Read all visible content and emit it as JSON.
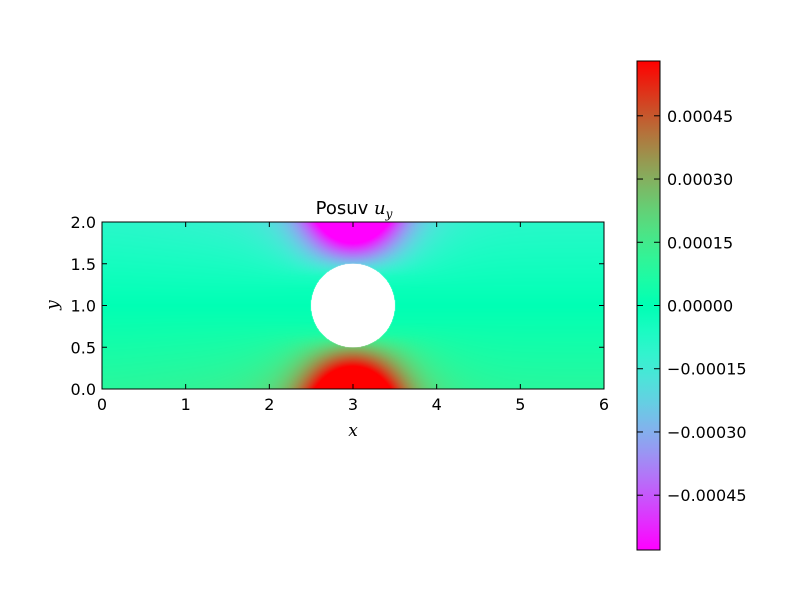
{
  "chart_data": {
    "type": "heatmap",
    "title": "Posuv ",
    "title_math": "u",
    "title_math_sub": "y",
    "xlabel": "x",
    "ylabel": "y",
    "xlim": [
      0,
      6
    ],
    "ylim": [
      0,
      2
    ],
    "xticks": [
      0,
      1,
      2,
      3,
      4,
      5,
      6
    ],
    "yticks": [
      0.0,
      0.5,
      1.0,
      1.5,
      2.0
    ],
    "xtick_labels": [
      "0",
      "1",
      "2",
      "3",
      "4",
      "5",
      "6"
    ],
    "ytick_labels": [
      "0.0",
      "0.5",
      "1.0",
      "1.5",
      "2.0"
    ],
    "hole": {
      "center": [
        3.0,
        1.0
      ],
      "radius": 0.5
    },
    "field_description": "vertical displacement u_y of plate with circular hole; negative above hole, positive below",
    "colormap": "rainbow",
    "colorbar": {
      "min": -0.00058,
      "max": 0.00058,
      "ticks": [
        -0.00045,
        -0.0003,
        -0.00015,
        0.0,
        0.00015,
        0.0003,
        0.00045
      ],
      "tick_labels": [
        "−0.00045",
        "−0.00030",
        "−0.00015",
        "0.00000",
        "0.00015",
        "0.00030",
        "0.00045"
      ],
      "colors": [
        "#8000ff",
        "#2c7ef7",
        "#2adddd",
        "#80ffb4",
        "#d4dd80",
        "#ff7f40",
        "#ff0000"
      ]
    }
  }
}
